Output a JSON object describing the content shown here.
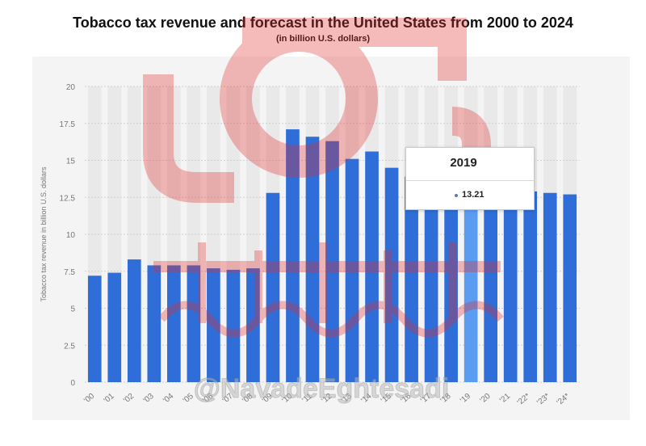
{
  "header": {
    "title": "Tobacco tax revenue and forecast in the United States from 2000 to 2024",
    "subtitle": "(in billion U.S. dollars)"
  },
  "chart_data": {
    "type": "bar",
    "title": "Tobacco tax revenue and forecast in the United States from 2000 to 2024",
    "subtitle": "(in billion U.S. dollars)",
    "xlabel": "",
    "ylabel": "Tobacco tax revenue in billion U.S. dollars",
    "ylim": [
      0,
      20
    ],
    "yticks": [
      "0",
      "2.5",
      "5",
      "7.5",
      "10",
      "12.5",
      "15",
      "17.5",
      "20"
    ],
    "grid": true,
    "categories": [
      "'00",
      "'01",
      "'02",
      "'03",
      "'04",
      "'05",
      "'06",
      "'07",
      "'08",
      "'09",
      "'10",
      "'11",
      "'12",
      "'13",
      "'14",
      "'15",
      "'16",
      "'17",
      "'18",
      "'19",
      "'20",
      "'21",
      "'22*",
      "'23*",
      "'24*"
    ],
    "values": [
      7.2,
      7.4,
      8.3,
      7.9,
      7.9,
      7.9,
      7.7,
      7.6,
      7.7,
      12.8,
      17.1,
      16.6,
      16.3,
      15.1,
      15.6,
      14.5,
      13.9,
      13.7,
      13.4,
      13.21,
      12.9,
      12.9,
      12.9,
      12.8,
      12.7
    ],
    "highlight_index": 19,
    "colors": {
      "bar": "#2f6ed8",
      "highlight": "#5a9cf2",
      "grid": "#cfcfcf",
      "axis_text": "#777777",
      "panel": "#f4f4f4",
      "ghost_bar": "#e9e9e9"
    },
    "tooltip": {
      "title": "2019",
      "value": "13.21"
    }
  },
  "watermark": {
    "handle": "@NavadeEghtesadi"
  }
}
